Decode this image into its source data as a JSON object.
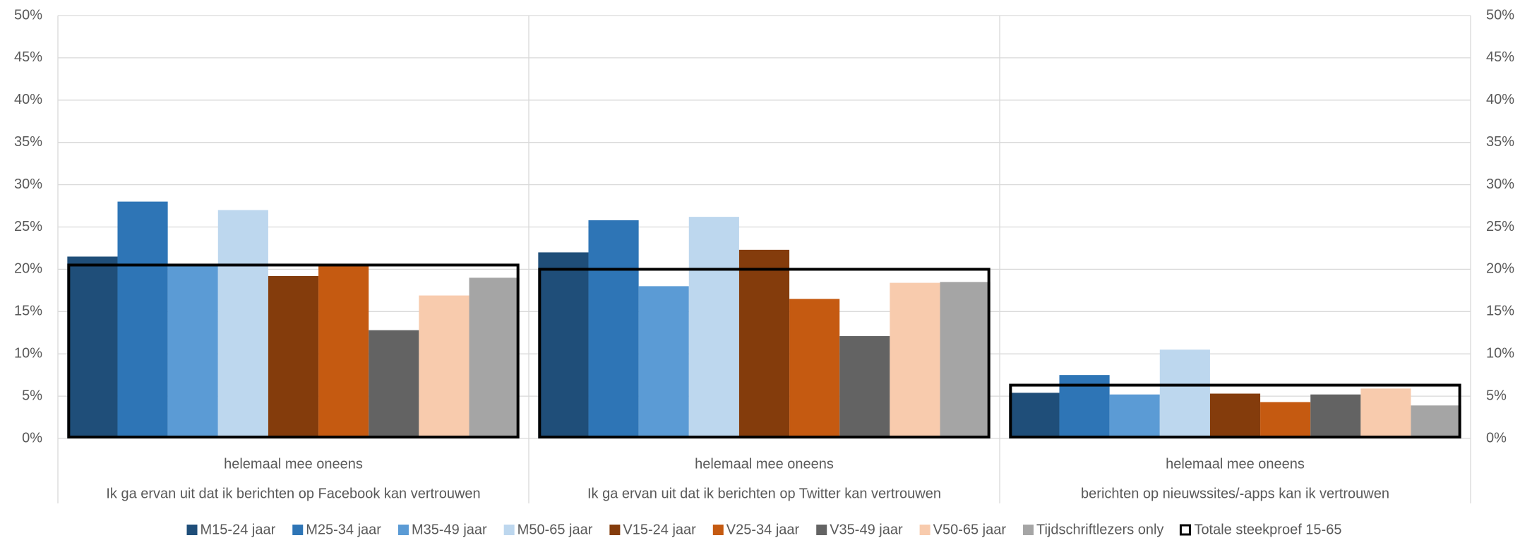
{
  "chart_data": {
    "type": "bar",
    "categories": [
      "helemaal mee oneens",
      "helemaal mee oneens",
      "helemaal mee oneens"
    ],
    "category_groups": [
      "Ik ga ervan uit dat ik berichten op Facebook kan vertrouwen",
      "Ik ga ervan uit dat ik berichten op Twitter kan vertrouwen",
      "berichten op nieuwssites/-apps kan ik vertrouwen"
    ],
    "series": [
      {
        "name": "M15-24 jaar",
        "color": "#1f4e79",
        "values": [
          21.5,
          22,
          5.4
        ]
      },
      {
        "name": "M25-34 jaar",
        "color": "#2e75b6",
        "values": [
          28,
          25.8,
          7.5
        ]
      },
      {
        "name": "M35-49 jaar",
        "color": "#5b9bd5",
        "values": [
          20.5,
          18,
          5.2
        ]
      },
      {
        "name": "M50-65 jaar",
        "color": "#bdd7ee",
        "values": [
          27,
          26.2,
          10.5
        ]
      },
      {
        "name": "V15-24 jaar",
        "color": "#843c0c",
        "values": [
          19.2,
          22.3,
          5.3
        ]
      },
      {
        "name": "V25-34 jaar",
        "color": "#c55a11",
        "values": [
          20.5,
          16.5,
          4.3
        ]
      },
      {
        "name": "V35-49 jaar",
        "color": "#636363",
        "values": [
          12.8,
          12.1,
          5.2
        ]
      },
      {
        "name": "V50-65 jaar",
        "color": "#f8cbad",
        "values": [
          16.9,
          18.4,
          5.9
        ]
      },
      {
        "name": "Tijdschriftlezers only",
        "color": "#a5a5a5",
        "values": [
          19,
          18.5,
          3.9
        ]
      },
      {
        "name": "Totale steekproef 15-65",
        "color": "#000000",
        "style": "outline",
        "axis": "y2",
        "values": [
          20.5,
          20,
          6.3
        ]
      }
    ],
    "ylim": [
      0,
      50
    ],
    "yticks": [
      {
        "value": 0,
        "label": "0%"
      },
      {
        "value": 5,
        "label": "5%"
      },
      {
        "value": 10,
        "label": "10%"
      },
      {
        "value": 15,
        "label": "15%"
      },
      {
        "value": 20,
        "label": "20%"
      },
      {
        "value": 25,
        "label": "25%"
      },
      {
        "value": 30,
        "label": "30%"
      },
      {
        "value": 35,
        "label": "35%"
      },
      {
        "value": 40,
        "label": "40%"
      },
      {
        "value": 45,
        "label": "45%"
      },
      {
        "value": 50,
        "label": "50%"
      }
    ],
    "y2lim": [
      0,
      50
    ],
    "y2ticks": [
      {
        "value": 0,
        "label": "0%"
      },
      {
        "value": 5,
        "label": "5%"
      },
      {
        "value": 10,
        "label": "10%"
      },
      {
        "value": 15,
        "label": "15%"
      },
      {
        "value": 20,
        "label": "20%"
      },
      {
        "value": 25,
        "label": "25%"
      },
      {
        "value": 30,
        "label": "30%"
      },
      {
        "value": 35,
        "label": "35%"
      },
      {
        "value": 40,
        "label": "40%"
      },
      {
        "value": 45,
        "label": "45%"
      },
      {
        "value": 50,
        "label": "50%"
      }
    ],
    "grid": true,
    "legend": "bottom"
  }
}
